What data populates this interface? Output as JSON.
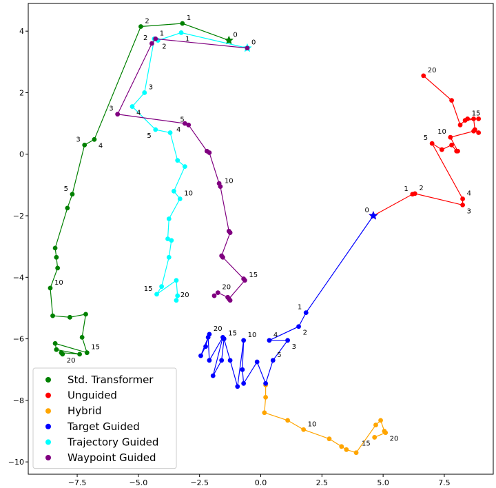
{
  "chart_data": {
    "type": "scatter",
    "title": "",
    "xlabel": "",
    "ylabel": "",
    "xlim": [
      -9.5,
      9.5
    ],
    "ylim": [
      -10.4,
      4.9
    ],
    "xticks": [
      -7.5,
      -5.0,
      -2.5,
      0.0,
      2.5,
      5.0,
      7.5
    ],
    "xtick_labels": [
      "−7.5",
      "−5.0",
      "−2.5",
      "0.0",
      "2.5",
      "5.0",
      "7.5"
    ],
    "yticks": [
      4,
      2,
      0,
      -2,
      -4,
      -6,
      -8,
      -10
    ],
    "ytick_labels": [
      "4",
      "2",
      "0",
      "−2",
      "−4",
      "−6",
      "−8",
      "−10"
    ],
    "grid": false,
    "legend_position": "lower-left",
    "series": [
      {
        "name": "Std. Transformer",
        "color": "#008000",
        "start_marker": "star",
        "points": [
          [
            -1.3,
            3.7
          ],
          [
            -3.2,
            4.25
          ],
          [
            -4.9,
            4.15
          ],
          [
            -6.8,
            0.48
          ],
          [
            -7.2,
            0.3
          ],
          [
            -7.7,
            -1.3
          ],
          [
            -7.9,
            -1.75
          ],
          [
            -8.4,
            -3.05
          ],
          [
            -8.35,
            -3.35
          ],
          [
            -8.3,
            -3.7
          ],
          [
            -8.6,
            -4.35
          ],
          [
            -8.5,
            -5.25
          ],
          [
            -7.8,
            -5.3
          ],
          [
            -7.15,
            -5.2
          ],
          [
            -7.3,
            -5.95
          ],
          [
            -7.1,
            -6.45
          ],
          [
            -8.4,
            -6.15
          ],
          [
            -8.35,
            -6.35
          ],
          [
            -7.4,
            -6.5
          ],
          [
            -8.15,
            -6.45
          ],
          [
            -8.1,
            -6.5
          ]
        ],
        "point_labels": [
          {
            "index": 0,
            "text": "0",
            "dx": 1,
            "dy": -1
          },
          {
            "index": 1,
            "text": "1",
            "dx": 1,
            "dy": -1
          },
          {
            "index": 2,
            "text": "2",
            "dx": 1,
            "dy": -1
          },
          {
            "index": 3,
            "text": "4",
            "dx": 1,
            "dy": 1
          },
          {
            "index": 4,
            "text": "3",
            "dx": -1,
            "dy": -1
          },
          {
            "index": 5,
            "text": "5",
            "dx": -1,
            "dy": -1
          },
          {
            "index": 10,
            "text": "10",
            "dx": 1,
            "dy": -1
          },
          {
            "index": 15,
            "text": "15",
            "dx": 1,
            "dy": -1
          },
          {
            "index": 20,
            "text": "20",
            "dx": 1,
            "dy": 1
          }
        ]
      },
      {
        "name": "Unguided",
        "color": "#ff0000",
        "start_marker": "star",
        "points": [
          [
            4.6,
            -2.0
          ],
          [
            6.2,
            -1.3
          ],
          [
            6.3,
            -1.28
          ],
          [
            8.25,
            -1.65
          ],
          [
            8.25,
            -1.45
          ],
          [
            7.0,
            0.35
          ],
          [
            7.4,
            0.15
          ],
          [
            7.8,
            0.3
          ],
          [
            8.0,
            0.1
          ],
          [
            8.05,
            0.1
          ],
          [
            7.75,
            0.55
          ],
          [
            8.7,
            0.75
          ],
          [
            8.9,
            0.7
          ],
          [
            8.75,
            0.8
          ],
          [
            8.7,
            1.15
          ],
          [
            8.45,
            1.15
          ],
          [
            8.9,
            1.15
          ],
          [
            8.35,
            1.1
          ],
          [
            8.15,
            0.95
          ],
          [
            7.8,
            1.75
          ],
          [
            6.65,
            2.55
          ]
        ],
        "point_labels": [
          {
            "index": 0,
            "text": "0",
            "dx": -1,
            "dy": -1
          },
          {
            "index": 1,
            "text": "1",
            "dx": -1,
            "dy": -1
          },
          {
            "index": 2,
            "text": "2",
            "dx": 1,
            "dy": -1
          },
          {
            "index": 3,
            "text": "3",
            "dx": 1,
            "dy": 1
          },
          {
            "index": 4,
            "text": "4",
            "dx": 1,
            "dy": -1
          },
          {
            "index": 5,
            "text": "5",
            "dx": -1,
            "dy": -1
          },
          {
            "index": 10,
            "text": "10",
            "dx": -1,
            "dy": -1
          },
          {
            "index": 15,
            "text": "15",
            "dx": 1,
            "dy": -1
          },
          {
            "index": 20,
            "text": "20",
            "dx": 1,
            "dy": -1
          }
        ]
      },
      {
        "name": "Hybrid",
        "color": "#ffa500",
        "start_marker": "dot",
        "points": [
          [
            0.2,
            -7.5
          ],
          [
            0.2,
            -7.9
          ],
          [
            0.15,
            -8.4
          ],
          [
            1.1,
            -8.65
          ],
          [
            1.75,
            -8.95
          ],
          [
            2.8,
            -9.25
          ],
          [
            3.3,
            -9.5
          ],
          [
            3.5,
            -9.6
          ],
          [
            3.9,
            -9.7
          ],
          [
            4.7,
            -8.8
          ],
          [
            4.9,
            -8.65
          ],
          [
            5.05,
            -9.0
          ],
          [
            5.1,
            -9.05
          ],
          [
            4.65,
            -9.2
          ]
        ],
        "point_labels": [
          {
            "index": 4,
            "text": "10",
            "dx": 1,
            "dy": -1
          },
          {
            "index": 13,
            "text": "15",
            "dx": -1,
            "dy": 1
          },
          {
            "index": 12,
            "text": "20",
            "dx": 1,
            "dy": 1
          }
        ]
      },
      {
        "name": "Target Guided",
        "color": "#0000ff",
        "start_marker": "star",
        "points": [
          [
            4.6,
            -2.0
          ],
          [
            1.85,
            -5.15
          ],
          [
            1.55,
            -5.6
          ],
          [
            0.35,
            -6.05
          ],
          [
            1.1,
            -6.05
          ],
          [
            0.5,
            -6.7
          ],
          [
            0.2,
            -7.45
          ],
          [
            -0.15,
            -6.75
          ],
          [
            -0.7,
            -7.45
          ],
          [
            -0.75,
            -7.0
          ],
          [
            -0.7,
            -6.05
          ],
          [
            -0.95,
            -7.55
          ],
          [
            -1.25,
            -6.7
          ],
          [
            -1.5,
            -6.0
          ],
          [
            -1.6,
            -6.7
          ],
          [
            -1.95,
            -7.2
          ],
          [
            -1.55,
            -5.95
          ],
          [
            -2.1,
            -6.7
          ],
          [
            -2.15,
            -5.95
          ],
          [
            -2.25,
            -6.25
          ],
          [
            -2.45,
            -6.55
          ],
          [
            -2.1,
            -5.85
          ]
        ],
        "point_labels": [
          {
            "index": 1,
            "text": "1",
            "dx": -1,
            "dy": -1
          },
          {
            "index": 2,
            "text": "2",
            "dx": 1,
            "dy": 1
          },
          {
            "index": 3,
            "text": "4",
            "dx": 1,
            "dy": -1
          },
          {
            "index": 4,
            "text": "3",
            "dx": 1,
            "dy": 1
          },
          {
            "index": 5,
            "text": "5",
            "dx": 1,
            "dy": -1
          },
          {
            "index": 10,
            "text": "10",
            "dx": 1,
            "dy": -1
          },
          {
            "index": 13,
            "text": "15",
            "dx": 1,
            "dy": -1
          },
          {
            "index": 21,
            "text": "20",
            "dx": 1,
            "dy": -1
          }
        ]
      },
      {
        "name": "Trajectory Guided",
        "color": "#00ffff",
        "start_marker": "star",
        "points": [
          [
            -0.55,
            3.45
          ],
          [
            -3.25,
            3.95
          ],
          [
            -4.2,
            3.7
          ],
          [
            -4.35,
            3.75
          ],
          [
            -4.75,
            2.0
          ],
          [
            -5.25,
            1.55
          ],
          [
            -4.3,
            0.8
          ],
          [
            -3.7,
            0.7
          ],
          [
            -3.4,
            -0.2
          ],
          [
            -3.1,
            -0.4
          ],
          [
            -3.55,
            -1.2
          ],
          [
            -3.3,
            -1.45
          ],
          [
            -3.75,
            -2.1
          ],
          [
            -3.8,
            -2.75
          ],
          [
            -3.65,
            -2.8
          ],
          [
            -3.75,
            -3.35
          ],
          [
            -4.05,
            -4.3
          ],
          [
            -4.25,
            -4.55
          ],
          [
            -3.45,
            -4.1
          ],
          [
            -3.4,
            -4.6
          ],
          [
            -3.45,
            -4.75
          ]
        ],
        "point_labels": [
          {
            "index": 0,
            "text": "0",
            "dx": 1,
            "dy": -1
          },
          {
            "index": 1,
            "text": "1",
            "dx": 1,
            "dy": 1
          },
          {
            "index": 2,
            "text": "2",
            "dx": 1,
            "dy": 1
          },
          {
            "index": 4,
            "text": "3",
            "dx": 1,
            "dy": -1
          },
          {
            "index": 5,
            "text": "4",
            "dx": 1,
            "dy": 1
          },
          {
            "index": 6,
            "text": "5",
            "dx": -1,
            "dy": 1
          },
          {
            "index": 11,
            "text": "10",
            "dx": 1,
            "dy": -1
          },
          {
            "index": 17,
            "text": "15",
            "dx": -1,
            "dy": -1
          },
          {
            "index": 20,
            "text": "20",
            "dx": 1,
            "dy": -1
          }
        ]
      },
      {
        "name": "Waypoint Guided",
        "color": "#800080",
        "start_marker": "dot",
        "points": [
          [
            -0.55,
            3.45
          ],
          [
            -4.3,
            3.75
          ],
          [
            -4.45,
            3.6
          ],
          [
            -5.85,
            1.3
          ],
          [
            -3.1,
            1.0
          ],
          [
            -2.95,
            0.95
          ],
          [
            -2.2,
            0.1
          ],
          [
            -2.1,
            0.05
          ],
          [
            -1.7,
            -0.95
          ],
          [
            -1.65,
            -1.05
          ],
          [
            -1.3,
            -2.5
          ],
          [
            -1.25,
            -2.55
          ],
          [
            -1.6,
            -3.3
          ],
          [
            -1.55,
            -3.35
          ],
          [
            -0.7,
            -4.05
          ],
          [
            -0.65,
            -4.1
          ],
          [
            -1.3,
            -4.7
          ],
          [
            -1.25,
            -4.75
          ],
          [
            -1.35,
            -4.65
          ],
          [
            -1.75,
            -4.5
          ],
          [
            -1.9,
            -4.6
          ]
        ],
        "point_labels": [
          {
            "index": 1,
            "text": "1",
            "dx": 1,
            "dy": -1
          },
          {
            "index": 2,
            "text": "2",
            "dx": -1,
            "dy": -1
          },
          {
            "index": 3,
            "text": "3",
            "dx": -1,
            "dy": -1
          },
          {
            "index": 4,
            "text": "4",
            "dx": -1,
            "dy": 1
          },
          {
            "index": 5,
            "text": "5",
            "dx": -1,
            "dy": -1
          },
          {
            "index": 9,
            "text": "10",
            "dx": 1,
            "dy": -1
          },
          {
            "index": 15,
            "text": "15",
            "dx": 1,
            "dy": -1
          },
          {
            "index": 19,
            "text": "20",
            "dx": 1,
            "dy": -1
          }
        ]
      }
    ]
  }
}
